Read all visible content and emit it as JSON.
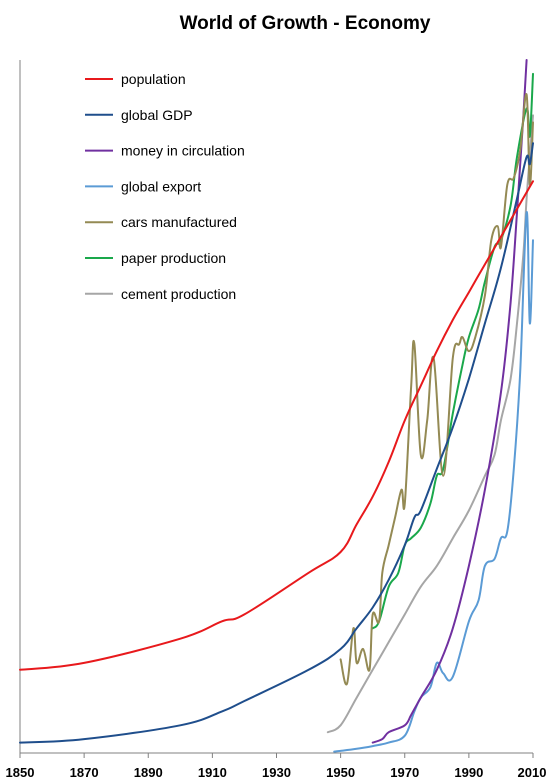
{
  "chart_data": {
    "type": "line",
    "title": "World of Growth - Economy",
    "xlabel": "",
    "ylabel": "",
    "xlim": [
      1850,
      2010
    ],
    "ylim": [
      0,
      100
    ],
    "x_ticks": [
      1850,
      1870,
      1890,
      1910,
      1930,
      1950,
      1970,
      1990,
      2010
    ],
    "y_tick_labels": false,
    "grid": false,
    "legend_position": "top-left",
    "series": [
      {
        "name": "population",
        "color": "#e8191c",
        "points": [
          [
            1850,
            12
          ],
          [
            1870,
            13
          ],
          [
            1900,
            16.5
          ],
          [
            1913,
            19
          ],
          [
            1920,
            20
          ],
          [
            1940,
            26
          ],
          [
            1950,
            29
          ],
          [
            1955,
            33
          ],
          [
            1960,
            37
          ],
          [
            1965,
            42
          ],
          [
            1970,
            48
          ],
          [
            1975,
            53
          ],
          [
            1980,
            58
          ],
          [
            1985,
            62.5
          ],
          [
            1990,
            66.5
          ],
          [
            1995,
            70.5
          ],
          [
            2000,
            74.5
          ],
          [
            2005,
            78.5
          ],
          [
            2010,
            82.5
          ]
        ]
      },
      {
        "name": "global GDP",
        "color": "#1f4e8c",
        "points": [
          [
            1850,
            1.5
          ],
          [
            1870,
            2
          ],
          [
            1900,
            4
          ],
          [
            1913,
            6
          ],
          [
            1920,
            7.5
          ],
          [
            1940,
            12
          ],
          [
            1950,
            15
          ],
          [
            1955,
            18
          ],
          [
            1960,
            21
          ],
          [
            1965,
            25
          ],
          [
            1970,
            30
          ],
          [
            1973,
            34
          ],
          [
            1975,
            35
          ],
          [
            1980,
            41
          ],
          [
            1985,
            47
          ],
          [
            1990,
            54
          ],
          [
            1995,
            62
          ],
          [
            2000,
            70
          ],
          [
            2005,
            80
          ],
          [
            2008,
            86
          ],
          [
            2009,
            85
          ],
          [
            2010,
            88
          ]
        ]
      },
      {
        "name": "money in circulation",
        "color": "#7030a0",
        "points": [
          [
            1960,
            1.5
          ],
          [
            1963,
            2
          ],
          [
            1965,
            3
          ],
          [
            1970,
            4
          ],
          [
            1972,
            5.5
          ],
          [
            1975,
            8
          ],
          [
            1980,
            12
          ],
          [
            1985,
            18
          ],
          [
            1990,
            27
          ],
          [
            1995,
            38
          ],
          [
            2000,
            52
          ],
          [
            2003,
            65
          ],
          [
            2005,
            78
          ],
          [
            2007,
            92
          ],
          [
            2008,
            100
          ]
        ]
      },
      {
        "name": "global export",
        "color": "#5b9bd5",
        "points": [
          [
            1948,
            0.2
          ],
          [
            1950,
            0.3
          ],
          [
            1955,
            0.6
          ],
          [
            1960,
            1
          ],
          [
            1965,
            1.5
          ],
          [
            1970,
            2.5
          ],
          [
            1973,
            6
          ],
          [
            1975,
            8
          ],
          [
            1978,
            9.5
          ],
          [
            1980,
            13
          ],
          [
            1982,
            11.5
          ],
          [
            1985,
            11
          ],
          [
            1990,
            19
          ],
          [
            1993,
            22
          ],
          [
            1995,
            27
          ],
          [
            1998,
            28
          ],
          [
            2000,
            31
          ],
          [
            2002,
            32
          ],
          [
            2004,
            41
          ],
          [
            2006,
            55
          ],
          [
            2008,
            78
          ],
          [
            2009,
            62
          ],
          [
            2010,
            74
          ]
        ]
      },
      {
        "name": "cars manufactured",
        "color": "#948a54",
        "points": [
          [
            1950,
            13.5
          ],
          [
            1952,
            10
          ],
          [
            1954,
            18
          ],
          [
            1955,
            13
          ],
          [
            1957,
            15
          ],
          [
            1959,
            12
          ],
          [
            1960,
            20
          ],
          [
            1962,
            19
          ],
          [
            1963,
            26
          ],
          [
            1965,
            30
          ],
          [
            1967,
            34
          ],
          [
            1969,
            38
          ],
          [
            1970,
            36
          ],
          [
            1972,
            53
          ],
          [
            1973,
            59
          ],
          [
            1975,
            43
          ],
          [
            1977,
            48
          ],
          [
            1979,
            57
          ],
          [
            1982,
            40
          ],
          [
            1985,
            57
          ],
          [
            1987,
            59
          ],
          [
            1988,
            60
          ],
          [
            1990,
            58
          ],
          [
            1992,
            60
          ],
          [
            1995,
            66
          ],
          [
            1997,
            74
          ],
          [
            1999,
            76
          ],
          [
            2000,
            73
          ],
          [
            2002,
            82
          ],
          [
            2004,
            83
          ],
          [
            2006,
            87
          ],
          [
            2008,
            95
          ],
          [
            2009,
            82
          ],
          [
            2010,
            91
          ]
        ]
      },
      {
        "name": "paper production",
        "color": "#1aa84b",
        "points": [
          [
            1960,
            18
          ],
          [
            1962,
            19
          ],
          [
            1965,
            24
          ],
          [
            1968,
            26
          ],
          [
            1970,
            30
          ],
          [
            1972,
            31
          ],
          [
            1975,
            32.5
          ],
          [
            1978,
            36
          ],
          [
            1980,
            40
          ],
          [
            1982,
            41
          ],
          [
            1985,
            49
          ],
          [
            1988,
            56
          ],
          [
            1990,
            60
          ],
          [
            1993,
            64
          ],
          [
            1995,
            68
          ],
          [
            1998,
            73
          ],
          [
            2000,
            74
          ],
          [
            2003,
            79
          ],
          [
            2005,
            86
          ],
          [
            2008,
            93
          ],
          [
            2009,
            89
          ],
          [
            2010,
            98
          ]
        ]
      },
      {
        "name": "cement production",
        "color": "#a6a6a6",
        "points": [
          [
            1946,
            3
          ],
          [
            1950,
            4
          ],
          [
            1955,
            8
          ],
          [
            1960,
            12
          ],
          [
            1965,
            16
          ],
          [
            1970,
            20
          ],
          [
            1975,
            24
          ],
          [
            1980,
            27
          ],
          [
            1985,
            31
          ],
          [
            1990,
            35
          ],
          [
            1995,
            40
          ],
          [
            1998,
            43
          ],
          [
            2000,
            48
          ],
          [
            2003,
            54
          ],
          [
            2005,
            62
          ],
          [
            2007,
            72
          ],
          [
            2008,
            80
          ],
          [
            2009,
            86
          ],
          [
            2010,
            92
          ]
        ]
      }
    ]
  }
}
